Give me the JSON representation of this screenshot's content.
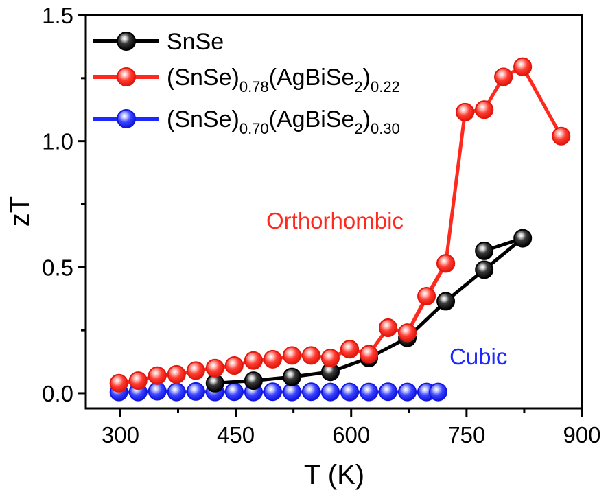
{
  "chart_data": {
    "type": "line",
    "xlabel": "T (K)",
    "ylabel": "zT",
    "xlim": [
      255,
      900
    ],
    "ylim": [
      -0.06,
      1.5
    ],
    "xticks": [
      "300",
      "450",
      "600",
      "750",
      "900"
    ],
    "yticks": [
      "0.0",
      "0.5",
      "1.0",
      "1.5"
    ],
    "grid": false,
    "legend_position": "top-left",
    "series": [
      {
        "name": "SnSe",
        "color": "#000000",
        "x": [
          423,
          473,
          523,
          573,
          623,
          673,
          723,
          773,
          823,
          773
        ],
        "y": [
          0.04,
          0.05,
          0.065,
          0.085,
          0.14,
          0.22,
          0.365,
          0.49,
          0.615,
          0.565
        ]
      },
      {
        "name": "(SnSe)0.78(AgBiSe2)0.22",
        "name_parts": {
          "base": "(SnSe)",
          "sub1": "0.78",
          "mid": "(AgBiSe",
          "sub2": "2",
          "close": ")",
          "sub3": "0.22"
        },
        "color": "#ff2a1f",
        "x": [
          298,
          323,
          348,
          373,
          398,
          423,
          448,
          473,
          498,
          523,
          548,
          573,
          598,
          623,
          648,
          673,
          723,
          748,
          773,
          798,
          823,
          873,
          823,
          798,
          773,
          748,
          723,
          698,
          673,
          648,
          623,
          598
        ],
        "y": [
          0.04,
          0.05,
          0.07,
          0.075,
          0.09,
          0.1,
          0.11,
          0.13,
          0.135,
          0.15,
          0.15,
          0.14,
          0.175,
          0.155,
          0.26,
          0.24,
          0.515,
          1.115,
          1.125,
          1.255,
          1.295,
          1.02,
          1.295,
          1.255,
          1.125,
          1.115,
          0.515,
          0.385,
          0.24,
          0.26,
          0.155,
          0.175
        ]
      },
      {
        "name": "(SnSe)0.70(AgBiSe2)0.30",
        "name_parts": {
          "base": "(SnSe)",
          "sub1": "0.70",
          "mid": "(AgBiSe",
          "sub2": "2",
          "close": ")",
          "sub3": "0.30"
        },
        "color": "#1c28ff",
        "x": [
          298,
          323,
          348,
          373,
          398,
          423,
          448,
          473,
          498,
          523,
          548,
          573,
          598,
          623,
          648,
          673,
          698,
          713
        ],
        "y": [
          0.005,
          0.005,
          0.008,
          0.005,
          0.007,
          0.005,
          0.006,
          0.005,
          0.006,
          0.005,
          0.006,
          0.005,
          0.005,
          0.005,
          0.006,
          0.005,
          0.005,
          0.005
        ]
      }
    ],
    "annotations": [
      {
        "text": "Orthorhombic",
        "color": "#ff2a1f"
      },
      {
        "text": "Cubic",
        "color": "#1c28ff"
      }
    ]
  }
}
